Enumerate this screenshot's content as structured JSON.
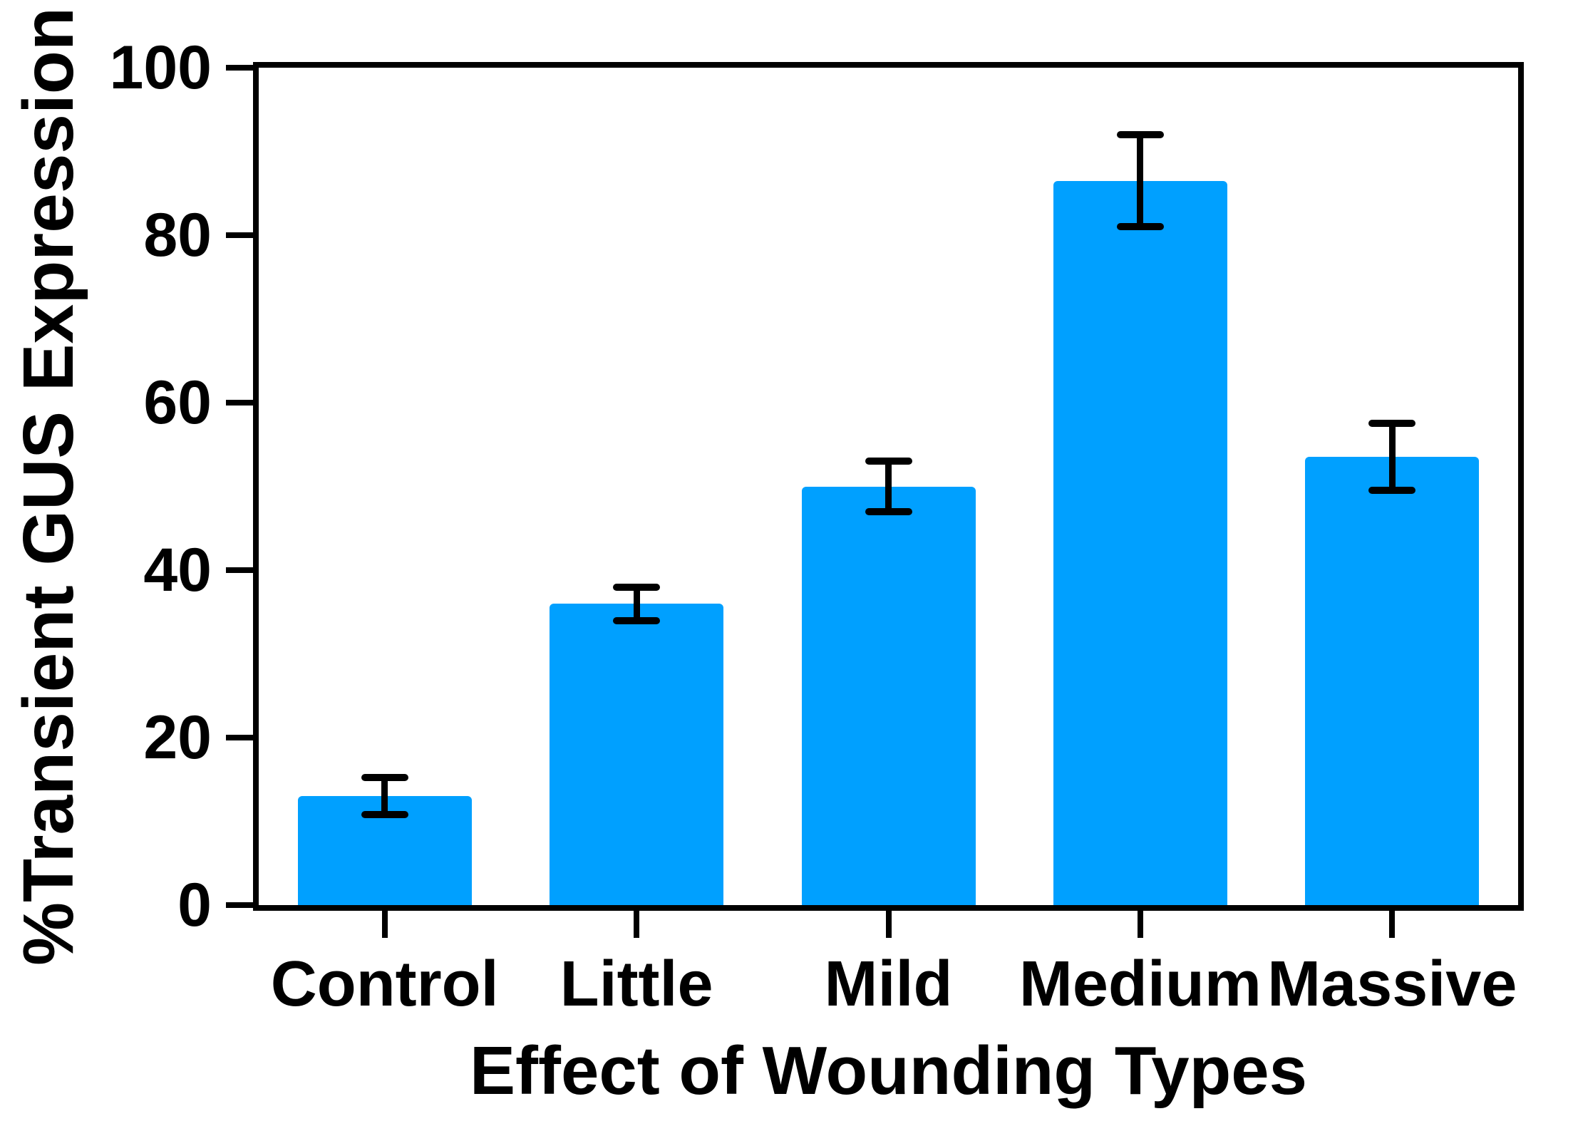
{
  "chart_data": {
    "type": "bar",
    "categories": [
      "Control",
      "Little",
      "Mild",
      "Medium",
      "Massive"
    ],
    "values": [
      13,
      36,
      50,
      86.5,
      53.5
    ],
    "errors": [
      2.2,
      2,
      3,
      5.5,
      4
    ],
    "error_style": "symmetric-caps",
    "xlabel": "Effect of Wounding Types",
    "ylabel": "%Transient GUS Expression",
    "ylim": [
      0,
      100
    ],
    "yticks": [
      0,
      20,
      40,
      60,
      80,
      100
    ],
    "ytick_labels": [
      "0",
      "20",
      "40",
      "60",
      "80",
      "100"
    ],
    "grid": false,
    "legend_position": "none",
    "frame": "full-box",
    "bar_color": "#00A0FF",
    "axis_color": "#000000",
    "background_color": "#FFFFFF"
  }
}
